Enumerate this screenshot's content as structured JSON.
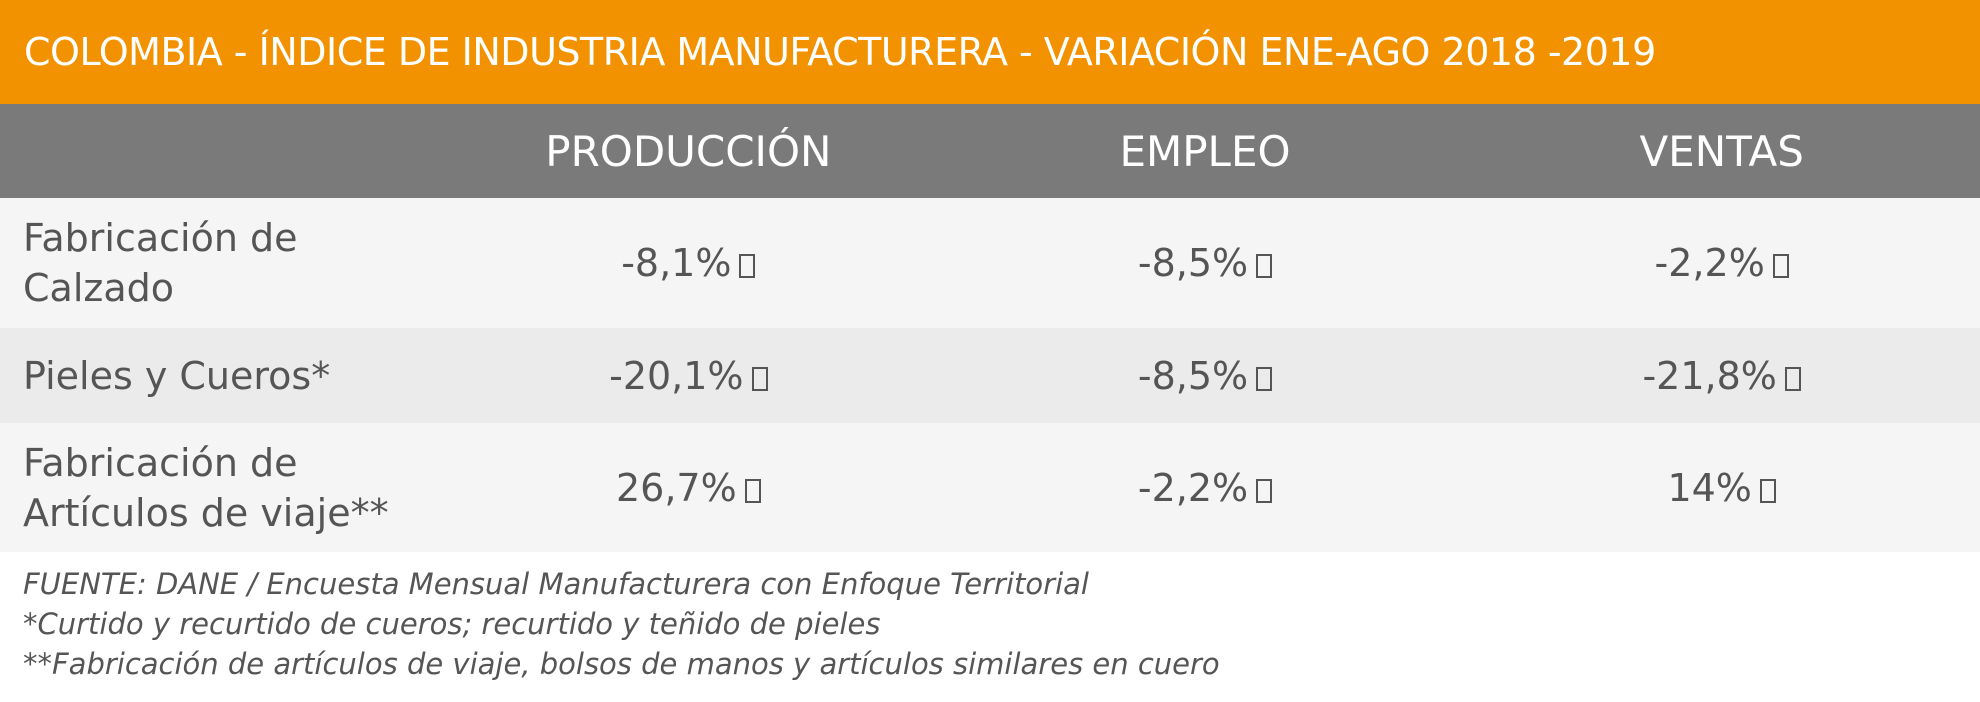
{
  "header": {
    "title": "COLOMBIA - ÍNDICE DE INDUSTRIA MANUFACTURERA - VARIACIÓN ENE-AGO 2018 -2019"
  },
  "table": {
    "columns": [
      "PRODUCCIÓN",
      "EMPLEO",
      "VENTAS"
    ],
    "rows": [
      {
        "label": [
          "Fabricación de",
          "Calzado"
        ],
        "cells": [
          "-8,1%",
          "-8,5%",
          "-2,2%"
        ]
      },
      {
        "label": [
          "Pieles y Cueros*"
        ],
        "cells": [
          "-20,1%",
          "-8,5%",
          "-21,8%"
        ]
      },
      {
        "label": [
          "Fabricación de",
          "Artículos de viaje**"
        ],
        "cells": [
          "26,7%",
          "-2,2%",
          "14%"
        ]
      }
    ]
  },
  "notes": [
    "FUENTE: DANE / Encuesta Mensual Manufacturera con Enfoque Territorial",
    "*Curtido y recurtido de cueros; recurtido y teñido de pieles",
    "**Fabricación de artículos de viaje, bolsos de manos y artículos similares en cuero"
  ]
}
